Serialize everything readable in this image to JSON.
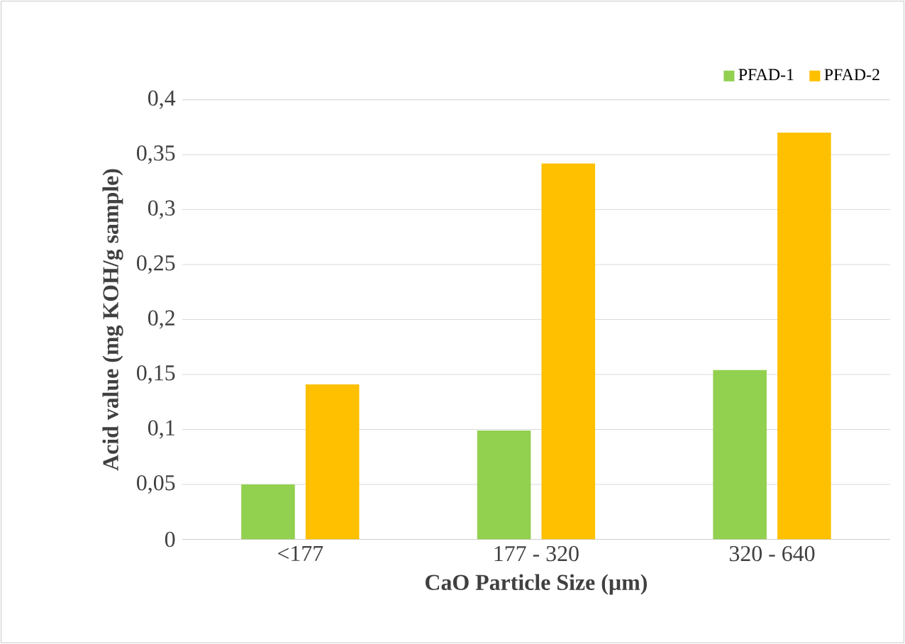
{
  "chart_data": {
    "type": "bar",
    "xlabel": "CaO Particle Size (µm)",
    "ylabel": "Acid value (mg KOH/g sample)",
    "categories": [
      "<177",
      "177 - 320",
      "320 - 640"
    ],
    "series": [
      {
        "name": "PFAD-1",
        "color": "#92d050",
        "values": [
          0.05,
          0.099,
          0.154
        ]
      },
      {
        "name": "PFAD-2",
        "color": "#ffc000",
        "values": [
          0.141,
          0.342,
          0.37
        ]
      }
    ],
    "ylim": [
      0,
      0.4
    ],
    "yticks": [
      0,
      {
        "value": 0.05,
        "label": "0,05"
      },
      {
        "value": 0.1,
        "label": "0,1"
      },
      {
        "value": 0.15,
        "label": "0,15"
      },
      {
        "value": 0.2,
        "label": "0,2"
      },
      {
        "value": 0.25,
        "label": "0,25"
      },
      {
        "value": 0.3,
        "label": "0,3"
      },
      {
        "value": 0.35,
        "label": "0,35"
      },
      {
        "value": 0.4,
        "label": "0,4"
      }
    ],
    "grid": "y",
    "legend": "top right"
  }
}
